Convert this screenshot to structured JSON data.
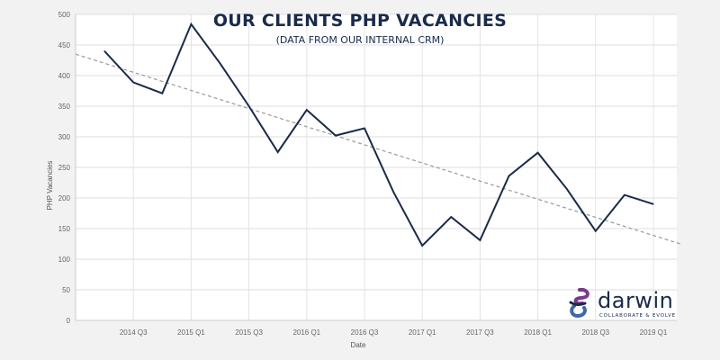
{
  "chart_data": {
    "type": "line",
    "title": "OUR CLIENTS PHP VACANCIES",
    "subtitle": "(DATA FROM OUR INTERNAL CRM)",
    "xlabel": "Date",
    "ylabel": "PHP Vacancies",
    "ylim": [
      0,
      500
    ],
    "yticks": [
      0,
      50,
      100,
      150,
      200,
      250,
      300,
      350,
      400,
      450,
      500
    ],
    "xtick_labels": [
      "2014 Q3",
      "2015 Q1",
      "2015 Q3",
      "2016 Q1",
      "2016 Q3",
      "2017 Q1",
      "2017 Q3",
      "2018 Q1",
      "2018 Q3",
      "2019 Q1"
    ],
    "grid": true,
    "series": [
      {
        "color": "#1a2a4a",
        "values": [
          {
            "x": "2014 Q2",
            "y": 440
          },
          {
            "x": "2014 Q3",
            "y": 389
          },
          {
            "x": "2014 Q4",
            "y": 371
          },
          {
            "x": "2015 Q1",
            "y": 484
          },
          {
            "x": "2015 Q2",
            "y": 420
          },
          {
            "x": "2015 Q3",
            "y": 350
          },
          {
            "x": "2015 Q4",
            "y": 275
          },
          {
            "x": "2016 Q1",
            "y": 344
          },
          {
            "x": "2016 Q2",
            "y": 302
          },
          {
            "x": "2016 Q3",
            "y": 314
          },
          {
            "x": "2016 Q4",
            "y": 210
          },
          {
            "x": "2017 Q1",
            "y": 122
          },
          {
            "x": "2017 Q2",
            "y": 169
          },
          {
            "x": "2017 Q3",
            "y": 131
          },
          {
            "x": "2017 Q4",
            "y": 236
          },
          {
            "x": "2018 Q1",
            "y": 274
          },
          {
            "x": "2018 Q2",
            "y": 215
          },
          {
            "x": "2018 Q3",
            "y": 146
          },
          {
            "x": "2018 Q4",
            "y": 205
          },
          {
            "x": "2019 Q1",
            "y": 190
          }
        ]
      }
    ],
    "trendline": {
      "style": "dashed",
      "color": "#999999",
      "start": {
        "x": "2014 Q1",
        "y": 435
      },
      "end": {
        "x": "2019 Q2",
        "y": 124
      }
    }
  },
  "logo": {
    "name": "darwin",
    "tagline": "COLLABORATE & EVOLVE",
    "colors": {
      "navy": "#1a2a4a",
      "purple": "#7a3a8c",
      "blue": "#3a6aa8"
    }
  }
}
